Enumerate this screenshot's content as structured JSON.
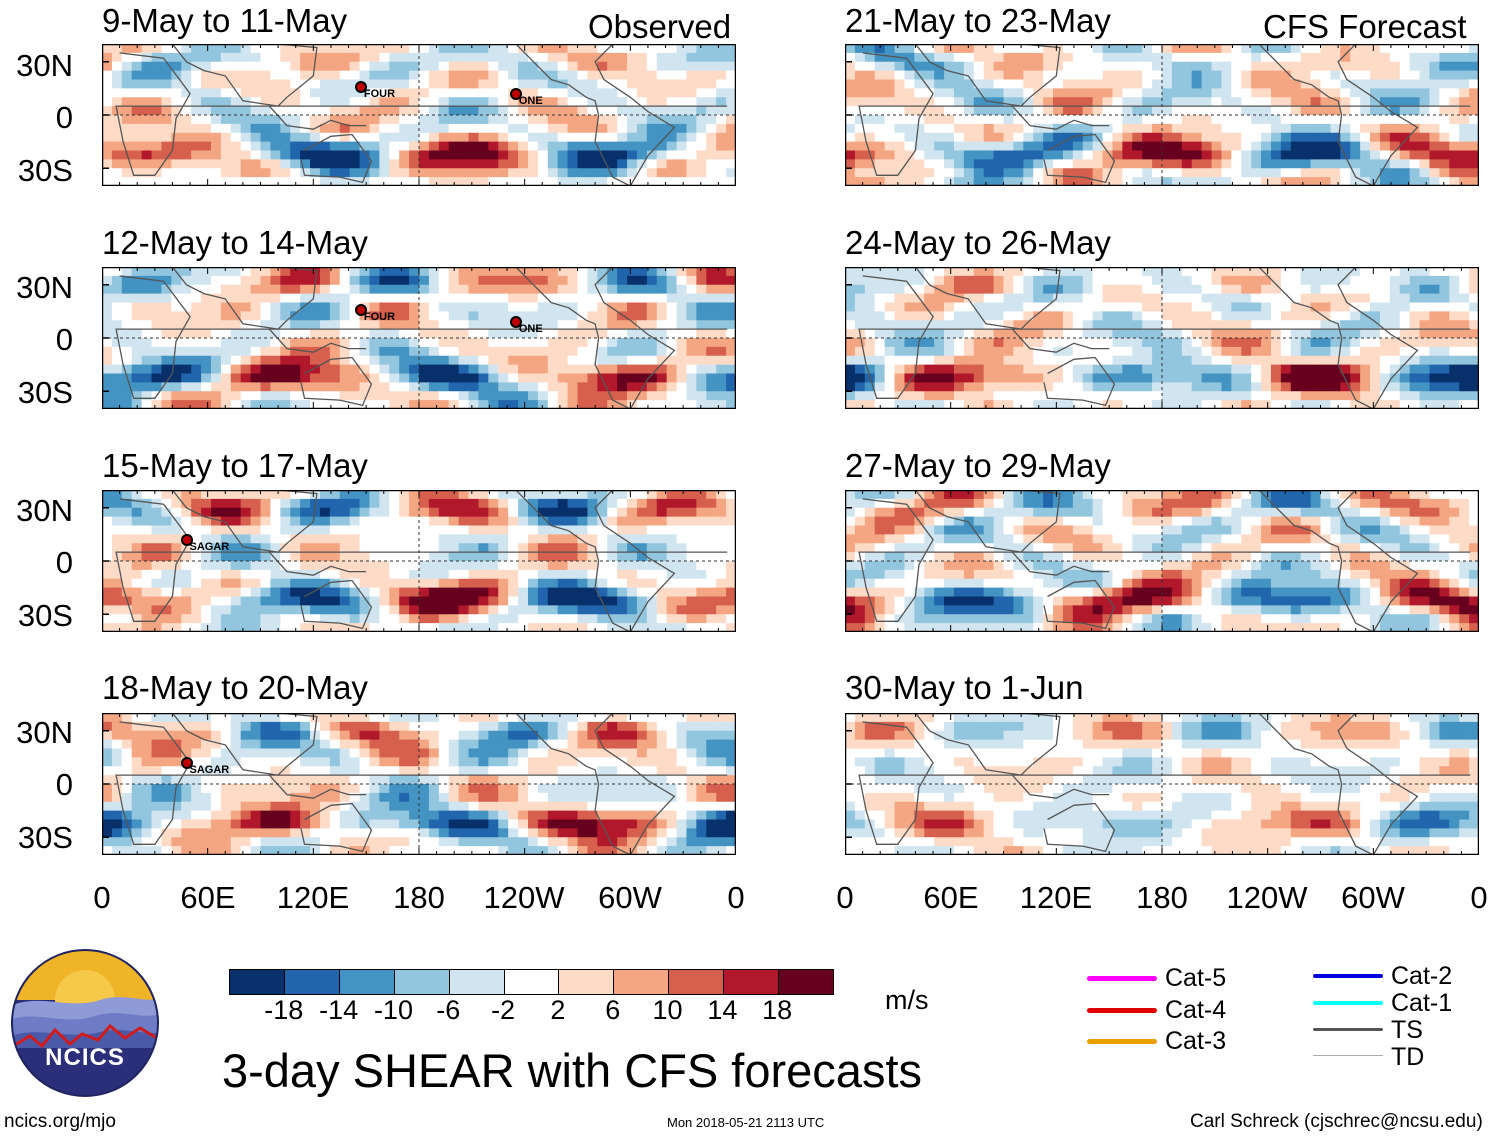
{
  "headers": {
    "observed": "Observed",
    "forecast": "CFS Forecast"
  },
  "chart_data": {
    "type": "heatmap",
    "title": "3-day SHEAR with CFS forecasts",
    "units": "m/s",
    "lat_labels": [
      "30N",
      "0",
      "30S"
    ],
    "lon_labels": [
      "0",
      "60E",
      "120E",
      "180",
      "120W",
      "60W",
      "0"
    ],
    "colorbar": {
      "ticks": [
        "-18",
        "-14",
        "-10",
        "-6",
        "-2",
        "2",
        "6",
        "10",
        "14",
        "18"
      ],
      "colors": [
        "#08306b",
        "#2166ac",
        "#4393c3",
        "#92c5de",
        "#d1e5f0",
        "#ffffff",
        "#fddbc7",
        "#f4a582",
        "#d6604d",
        "#b2182b",
        "#67001f"
      ]
    },
    "panels": [
      {
        "title": "9-May to 11-May",
        "group": "Observed",
        "storms": [
          {
            "name": "FOUR",
            "lon": 147,
            "lat": 16
          },
          {
            "name": "ONE",
            "lon": 235,
            "lat": 12
          }
        ]
      },
      {
        "title": "12-May to 14-May",
        "group": "Observed",
        "storms": [
          {
            "name": "FOUR",
            "lon": 147,
            "lat": 16
          },
          {
            "name": "ONE",
            "lon": 235,
            "lat": 9
          }
        ]
      },
      {
        "title": "15-May to 17-May",
        "group": "Observed",
        "storms": [
          {
            "name": "SAGAR",
            "lon": 48,
            "lat": 12
          }
        ]
      },
      {
        "title": "18-May to 20-May",
        "group": "Observed",
        "storms": [
          {
            "name": "SAGAR",
            "lon": 48,
            "lat": 12
          }
        ]
      },
      {
        "title": "21-May to 23-May",
        "group": "CFS Forecast",
        "storms": []
      },
      {
        "title": "24-May to 26-May",
        "group": "CFS Forecast",
        "storms": []
      },
      {
        "title": "27-May to 29-May",
        "group": "CFS Forecast",
        "storms": []
      },
      {
        "title": "30-May to 1-Jun",
        "group": "CFS Forecast",
        "storms": []
      }
    ]
  },
  "legend": {
    "items": [
      {
        "label": "Cat-5",
        "color": "#ff00ff"
      },
      {
        "label": "Cat-4",
        "color": "#e00000"
      },
      {
        "label": "Cat-3",
        "color": "#e8a000"
      },
      {
        "label": "Cat-2",
        "color": "#0000dd"
      },
      {
        "label": "Cat-1",
        "color": "#00ffff"
      },
      {
        "label": "TS",
        "color": "#555555"
      },
      {
        "label": "TD",
        "color": "#aaaaaa"
      }
    ]
  },
  "logo": {
    "text": "NCICS"
  },
  "footer": {
    "url": "ncics.org/mjo",
    "timestamp": "Mon 2018-05-21 2113 UTC",
    "credit": "Carl Schreck (cjschrec@ncsu.edu)"
  }
}
